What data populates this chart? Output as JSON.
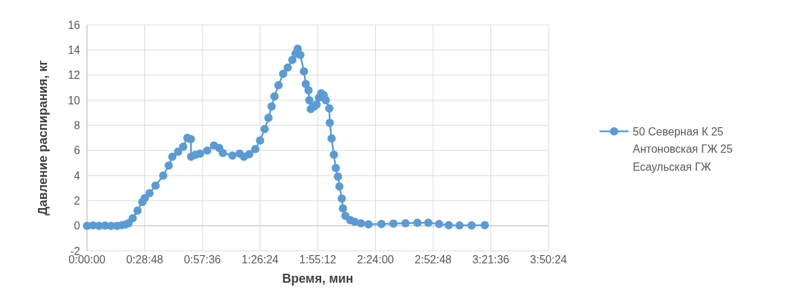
{
  "chart_data": {
    "type": "line",
    "xlabel": "Время, мин",
    "ylabel": "Давление распирания, кг",
    "xlim": [
      0,
      3.84
    ],
    "ylim": [
      -2,
      16
    ],
    "yticks": [
      -2,
      0,
      2,
      4,
      6,
      8,
      10,
      12,
      14,
      16
    ],
    "xticks": [
      {
        "value": 0,
        "label": "0:00:00"
      },
      {
        "value": 0.48,
        "label": "0:28:48"
      },
      {
        "value": 0.96,
        "label": "0:57:36"
      },
      {
        "value": 1.44,
        "label": "1:26:24"
      },
      {
        "value": 1.92,
        "label": "1:55:12"
      },
      {
        "value": 2.4,
        "label": "2:24:00"
      },
      {
        "value": 2.88,
        "label": "2:52:48"
      },
      {
        "value": 3.36,
        "label": "3:21:36"
      },
      {
        "value": 3.84,
        "label": "3:50:24"
      }
    ],
    "grid": true,
    "legend": "right",
    "marker": "circle",
    "line_style": "solid",
    "series": [
      {
        "name": "50 Северная К 25 Антоновская ГЖ 25 Есаульская ГЖ",
        "color": "#5b9bd5",
        "x": [
          0,
          0.05,
          0.1,
          0.15,
          0.2,
          0.25,
          0.29,
          0.32,
          0.345,
          0.38,
          0.42,
          0.46,
          0.48,
          0.52,
          0.57,
          0.634,
          0.68,
          0.71,
          0.758,
          0.8,
          0.835,
          0.864,
          0.866,
          0.9,
          0.94,
          1.0,
          1.056,
          1.1,
          1.13,
          1.21,
          1.27,
          1.305,
          1.35,
          1.4,
          1.44,
          1.478,
          1.51,
          1.536,
          1.56,
          1.593,
          1.632,
          1.67,
          1.708,
          1.735,
          1.753,
          1.775,
          1.805,
          1.82,
          1.843,
          1.85,
          1.862,
          1.89,
          1.91,
          1.93,
          1.949,
          1.97,
          1.987,
          2.016,
          2.02,
          2.035,
          2.054,
          2.07,
          2.088,
          2.1,
          2.12,
          2.13,
          2.15,
          2.19,
          2.227,
          2.28,
          2.342,
          2.45,
          2.55,
          2.65,
          2.75,
          2.84,
          2.93,
          3.01,
          3.1,
          3.2,
          3.31
        ],
        "values": [
          0,
          0.03,
          0,
          0.02,
          0,
          0,
          0.05,
          0.1,
          0.2,
          0.6,
          1.2,
          1.9,
          2.2,
          2.6,
          3.2,
          4.0,
          4.8,
          5.5,
          5.9,
          6.3,
          7.0,
          6.9,
          5.5,
          5.65,
          5.75,
          6.0,
          6.4,
          6.2,
          5.8,
          5.6,
          5.75,
          5.5,
          5.7,
          6.1,
          6.8,
          7.7,
          8.6,
          9.5,
          10.3,
          11.2,
          12.1,
          12.6,
          13.2,
          13.7,
          14.1,
          13.6,
          12.3,
          11.3,
          10.8,
          10.0,
          9.3,
          9.5,
          9.65,
          10.2,
          10.55,
          10.4,
          10.0,
          9.35,
          8.2,
          6.96,
          5.67,
          4.6,
          3.92,
          3.13,
          2.17,
          1.38,
          0.79,
          0.45,
          0.33,
          0.2,
          0.12,
          0.15,
          0.18,
          0.2,
          0.24,
          0.24,
          0.15,
          0.05,
          0.03,
          0.04,
          0.05
        ]
      }
    ]
  }
}
